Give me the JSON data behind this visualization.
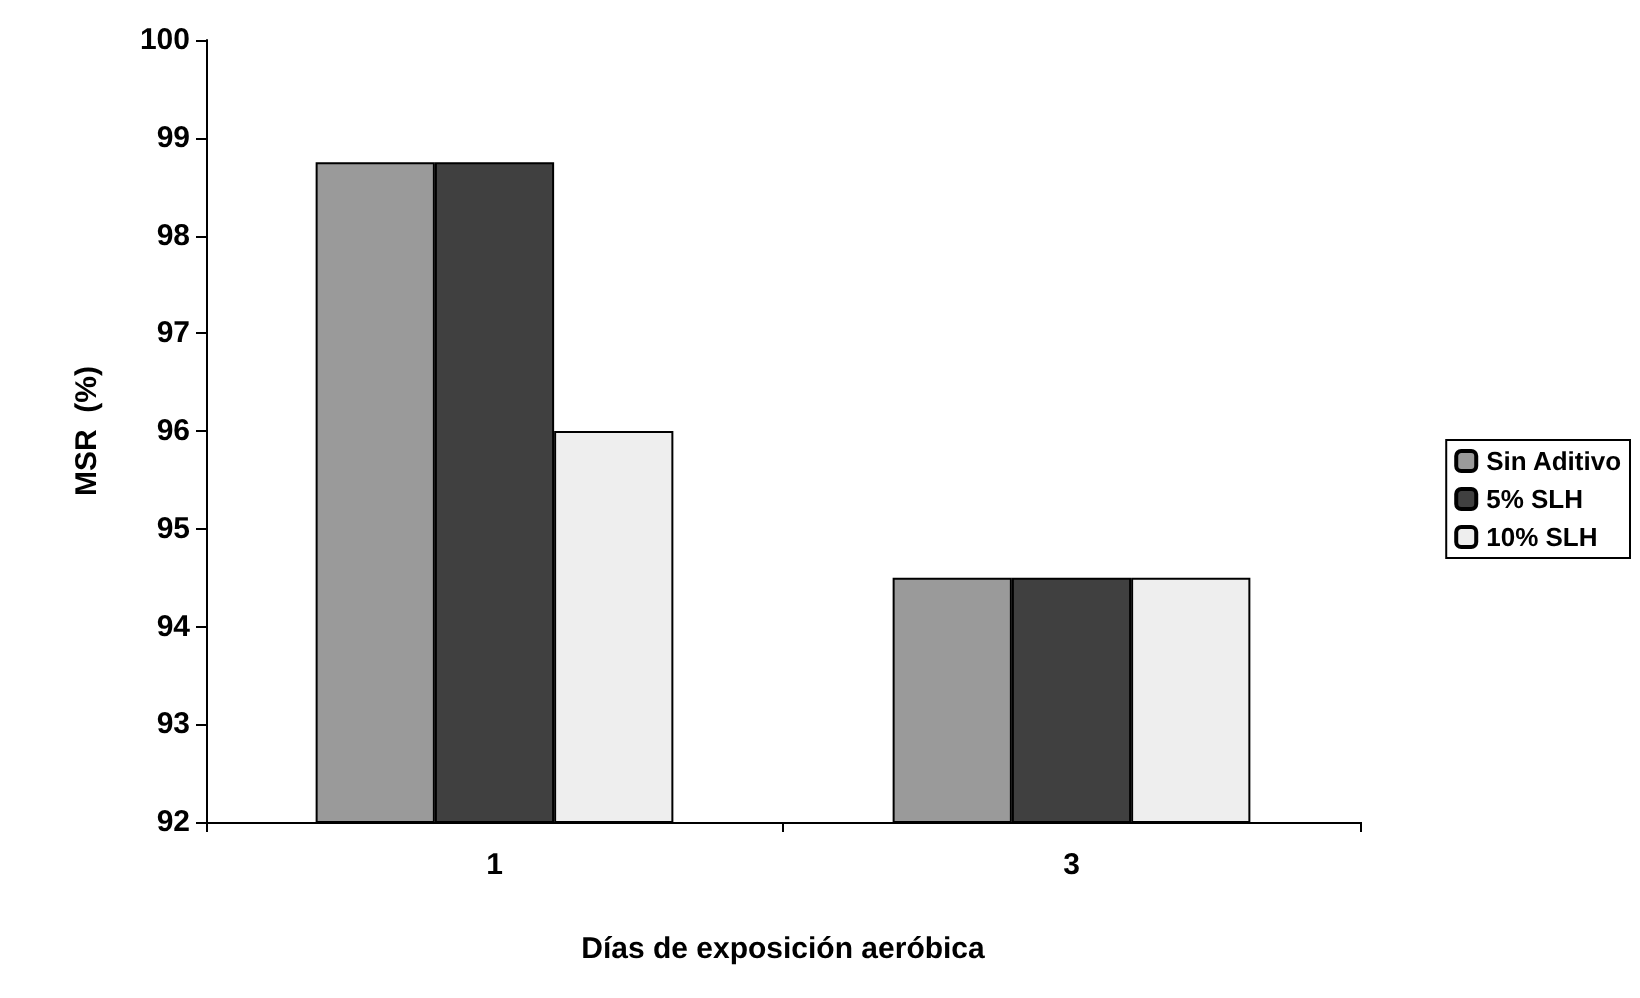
{
  "chart_data": {
    "type": "bar",
    "xlabel": "Días de exposición aeróbica",
    "ylabel": "MSR  (%)",
    "categories": [
      "1",
      "3"
    ],
    "series": [
      {
        "name": "Sin Aditivo",
        "color": "#9a9a9a",
        "values": [
          98.75,
          94.5
        ]
      },
      {
        "name": "5% SLH",
        "color": "#404040",
        "values": [
          98.75,
          94.5
        ]
      },
      {
        "name": "10% SLH",
        "color": "#eeeeee",
        "values": [
          96,
          94.5
        ]
      }
    ],
    "ylim": [
      92,
      100
    ],
    "yticks": [
      92,
      93,
      94,
      95,
      96,
      97,
      98,
      99,
      100
    ],
    "grid": false,
    "legend": "right"
  }
}
